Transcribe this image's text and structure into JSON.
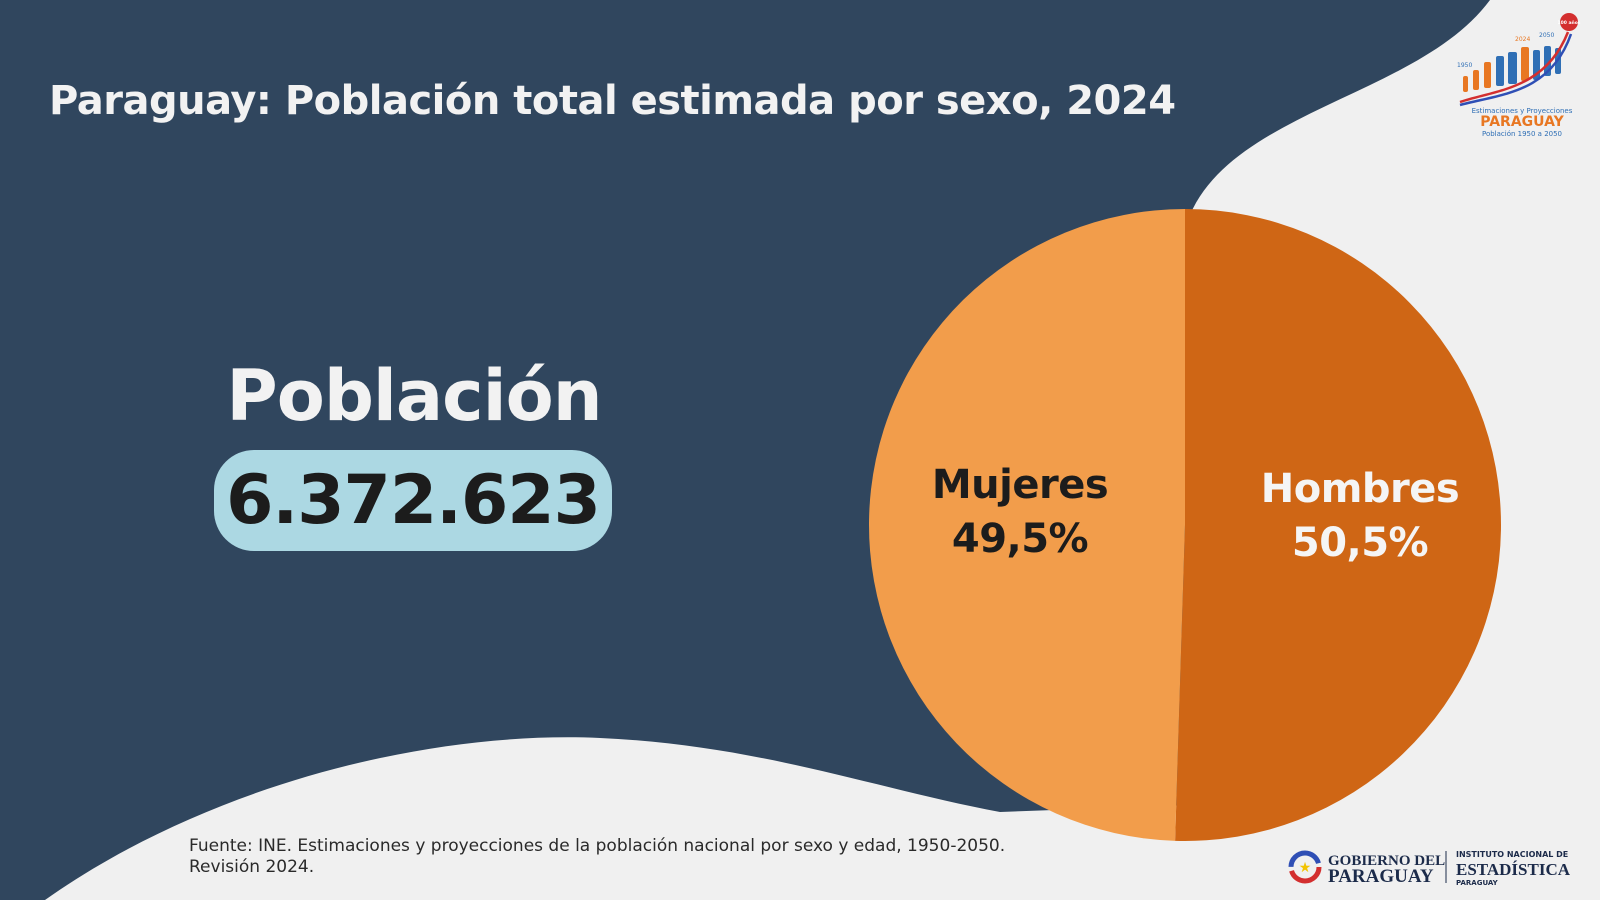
{
  "title": "Paraguay: Población total estimada por sexo, 2024",
  "population": {
    "label": "Población",
    "value": "6.372.623"
  },
  "chart_data": {
    "type": "pie",
    "title": "Paraguay: Población total estimada por sexo, 2024",
    "slices": [
      {
        "name": "Mujeres",
        "value": 49.5,
        "label": "49,5%",
        "color": "#f29d4b"
      },
      {
        "name": "Hombres",
        "value": 50.5,
        "label": "50,5%",
        "color": "#cf6615"
      }
    ]
  },
  "footer": {
    "source_line1": "Fuente: INE. Estimaciones y proyecciones de la población nacional por sexo y edad, 1950-2050.",
    "source_line2": "Revisión 2024."
  },
  "logo_top": {
    "years": [
      "1950",
      "2024",
      "2050"
    ],
    "badge": "100 años",
    "line1": "Estimaciones y Proyecciones",
    "line2": "PARAGUAY",
    "line3": "Población 1950 a 2050"
  },
  "logo_bottom": {
    "gov_line1": "GOBIERNO DEL",
    "gov_line2": "PARAGUAY",
    "ine_line1": "INSTITUTO NACIONAL DE",
    "ine_line2": "ESTADÍSTICA",
    "ine_line3": "PARAGUAY"
  },
  "colors": {
    "background": "#30465e",
    "light": "#f0f0f0",
    "pill": "#acd8e3"
  }
}
